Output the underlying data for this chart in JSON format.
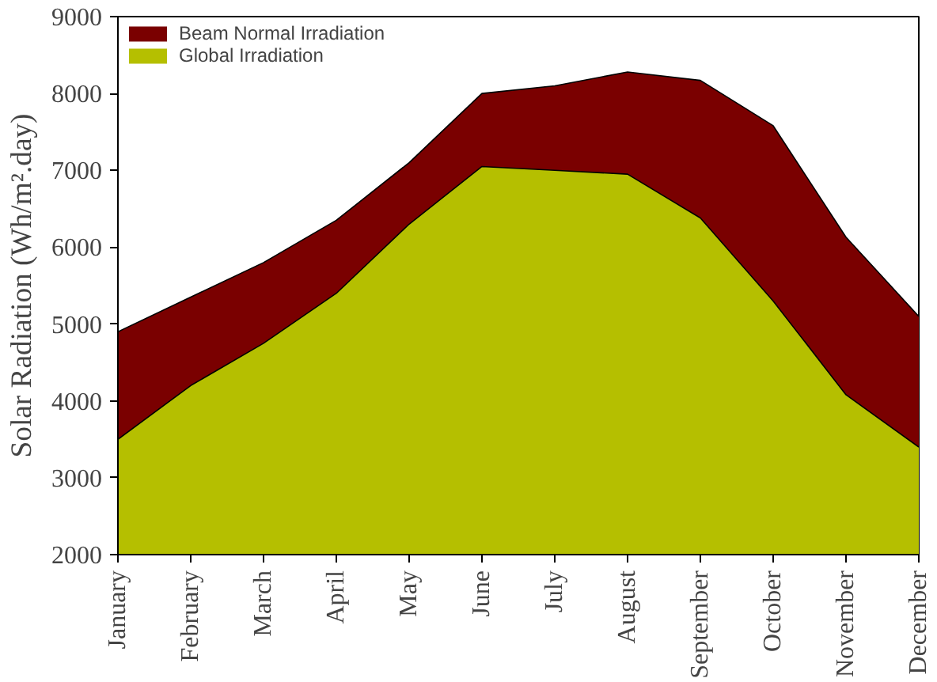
{
  "chart_data": {
    "type": "area",
    "ylabel": "Solar Radiation (Wh/m².day)",
    "categories": [
      "January",
      "February",
      "March",
      "April",
      "May",
      "June",
      "July",
      "August",
      "September",
      "October",
      "November",
      "December"
    ],
    "series": [
      {
        "name": "Beam Normal Irradiation",
        "color": "#7a0000",
        "values": [
          4900,
          5350,
          5800,
          6350,
          7100,
          8000,
          8100,
          8280,
          8170,
          7580,
          6130,
          5100
        ]
      },
      {
        "name": "Global Irradiation",
        "color": "#b5bf00",
        "values": [
          3500,
          4200,
          4750,
          5400,
          6300,
          7050,
          7000,
          6950,
          6380,
          5300,
          4080,
          3400
        ]
      }
    ],
    "ylim": [
      2000,
      9000
    ],
    "yticks": [
      2000,
      3000,
      4000,
      5000,
      6000,
      7000,
      8000,
      9000
    ],
    "grid": false,
    "legend": "top left"
  }
}
